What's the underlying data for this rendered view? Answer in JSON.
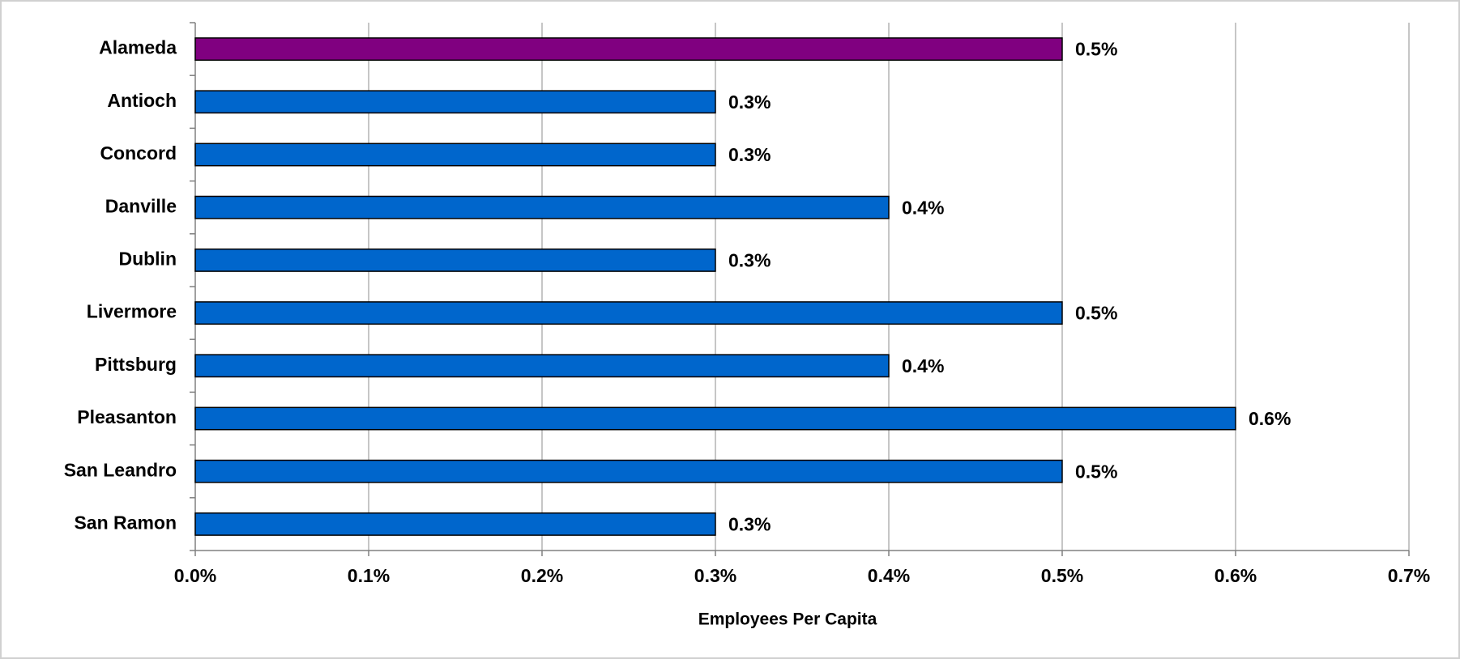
{
  "chart_data": {
    "type": "bar",
    "orientation": "horizontal",
    "x_label": "Employees Per Capita",
    "categories": [
      "Alameda",
      "Antioch",
      "Concord",
      "Danville",
      "Dublin",
      "Livermore",
      "Pittsburg",
      "Pleasanton",
      "San Leandro",
      "San Ramon"
    ],
    "values": [
      0.5,
      0.3,
      0.3,
      0.4,
      0.3,
      0.5,
      0.4,
      0.6,
      0.5,
      0.3
    ],
    "value_labels": [
      "0.5%",
      "0.3%",
      "0.3%",
      "0.4%",
      "0.3%",
      "0.5%",
      "0.4%",
      "0.6%",
      "0.5%",
      "0.3%"
    ],
    "colors": [
      "#800080",
      "#0066cc",
      "#0066cc",
      "#0066cc",
      "#0066cc",
      "#0066cc",
      "#0066cc",
      "#0066cc",
      "#0066cc",
      "#0066cc"
    ],
    "xlim": [
      0,
      0.7
    ],
    "xticks": [
      {
        "value": 0,
        "label": "0.0%"
      },
      {
        "value": 0.1,
        "label": "0.1%"
      },
      {
        "value": 0.2,
        "label": "0.2%"
      },
      {
        "value": 0.3,
        "label": "0.3%"
      },
      {
        "value": 0.4,
        "label": "0.4%"
      },
      {
        "value": 0.5,
        "label": "0.5%"
      },
      {
        "value": 0.6,
        "label": "0.6%"
      },
      {
        "value": 0.7,
        "label": "0.7%"
      }
    ],
    "grid": true
  }
}
